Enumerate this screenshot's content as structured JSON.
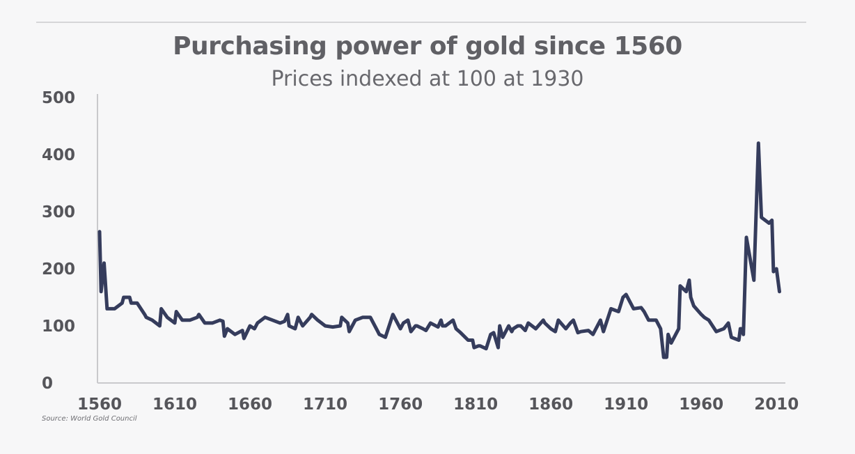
{
  "header": {
    "title": "Purchasing power of gold since 1560",
    "subtitle": "Prices indexed at 100 at 1930"
  },
  "footer": {
    "source": "Source: World Gold Council"
  },
  "chart_data": {
    "type": "line",
    "title": "Purchasing power of gold since 1560",
    "subtitle": "Prices indexed at 100 at 1930",
    "xlabel": "",
    "ylabel": "",
    "xlim": [
      1560,
      2015
    ],
    "ylim": [
      0,
      500
    ],
    "xticks": [
      1560,
      1610,
      1660,
      1710,
      1760,
      1810,
      1860,
      1910,
      1960,
      2010
    ],
    "yticks": [
      0,
      100,
      200,
      300,
      400,
      500
    ],
    "grid": false,
    "legend": "none",
    "line_color": "#353c5c",
    "series": [
      {
        "x": [
          1560,
          1561,
          1563,
          1565,
          1570,
          1575,
          1576,
          1580,
          1581,
          1585,
          1590,
          1591,
          1595,
          1600,
          1601,
          1605,
          1610,
          1611,
          1615,
          1620,
          1625,
          1626,
          1630,
          1635,
          1640,
          1642,
          1643,
          1645,
          1650,
          1655,
          1656,
          1660,
          1663,
          1665,
          1670,
          1675,
          1680,
          1683,
          1685,
          1686,
          1690,
          1692,
          1695,
          1700,
          1701,
          1705,
          1710,
          1715,
          1720,
          1721,
          1725,
          1726,
          1730,
          1735,
          1740,
          1745,
          1746,
          1750,
          1755,
          1760,
          1762,
          1765,
          1767,
          1770,
          1771,
          1775,
          1777,
          1780,
          1785,
          1787,
          1788,
          1790,
          1795,
          1797,
          1800,
          1805,
          1808,
          1809,
          1812,
          1813,
          1817,
          1820,
          1822,
          1825,
          1826,
          1828,
          1832,
          1834,
          1835,
          1838,
          1840,
          1843,
          1845,
          1850,
          1855,
          1856,
          1860,
          1863,
          1865,
          1870,
          1873,
          1875,
          1878,
          1880,
          1885,
          1888,
          1890,
          1893,
          1895,
          1900,
          1905,
          1908,
          1910,
          1915,
          1920,
          1922,
          1925,
          1930,
          1933,
          1935,
          1937,
          1938,
          1940,
          1945,
          1946,
          1950,
          1952,
          1953,
          1955,
          1960,
          1962,
          1965,
          1970,
          1975,
          1978,
          1980,
          1985,
          1986,
          1987,
          1988,
          1990,
          1995,
          1998,
          2000,
          2005,
          2007,
          2008,
          2010,
          2012
        ],
        "values": [
          265,
          160,
          210,
          130,
          130,
          140,
          150,
          150,
          140,
          140,
          120,
          115,
          110,
          100,
          130,
          115,
          105,
          125,
          110,
          110,
          115,
          120,
          105,
          105,
          110,
          108,
          82,
          95,
          85,
          92,
          78,
          100,
          95,
          105,
          115,
          110,
          105,
          108,
          120,
          100,
          95,
          115,
          100,
          115,
          120,
          110,
          100,
          98,
          100,
          115,
          105,
          90,
          110,
          115,
          115,
          90,
          85,
          80,
          120,
          95,
          105,
          110,
          90,
          100,
          100,
          95,
          92,
          105,
          98,
          110,
          100,
          100,
          110,
          95,
          88,
          75,
          75,
          62,
          65,
          65,
          60,
          85,
          88,
          62,
          100,
          80,
          100,
          90,
          95,
          100,
          100,
          92,
          105,
          95,
          110,
          105,
          95,
          90,
          110,
          95,
          105,
          110,
          88,
          90,
          92,
          85,
          95,
          110,
          90,
          130,
          125,
          150,
          155,
          130,
          132,
          125,
          110,
          110,
          95,
          45,
          45,
          85,
          70,
          95,
          170,
          160,
          180,
          150,
          135,
          120,
          115,
          110,
          90,
          95,
          105,
          80,
          75,
          95,
          95,
          85,
          255,
          180,
          420,
          290,
          280,
          285,
          195,
          200,
          160
        ]
      }
    ]
  }
}
